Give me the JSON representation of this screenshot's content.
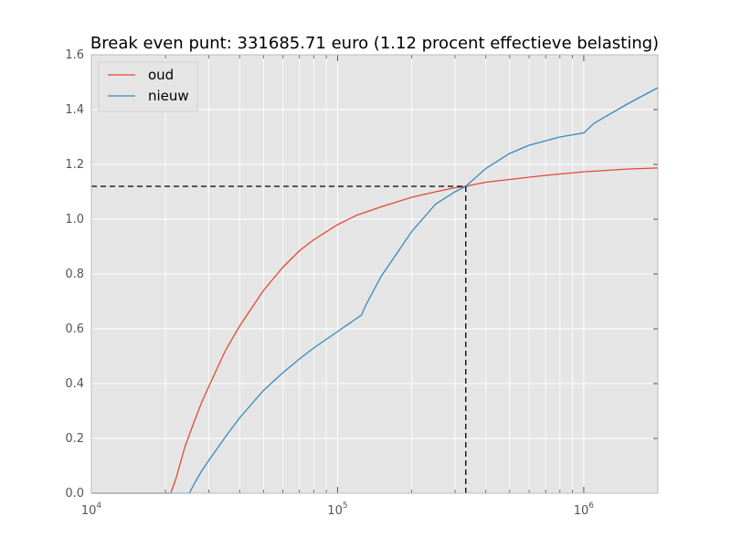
{
  "chart_data": {
    "type": "line",
    "title": "Break even punt: 331685.71 euro (1.12 procent effectieve belasting)",
    "xlabel": "",
    "ylabel": "",
    "xscale": "log",
    "xlim": [
      10000,
      2000000
    ],
    "ylim": [
      0,
      1.6
    ],
    "grid": true,
    "background": "#e5e5e5",
    "legend_position": "top-left",
    "x_ticks": [
      {
        "value": 10000,
        "base": "10",
        "exp": "4"
      },
      {
        "value": 100000,
        "base": "10",
        "exp": "5"
      },
      {
        "value": 1000000,
        "base": "10",
        "exp": "6"
      }
    ],
    "y_ticks": [
      {
        "value": 0.0,
        "label": "0.0"
      },
      {
        "value": 0.2,
        "label": "0.2"
      },
      {
        "value": 0.4,
        "label": "0.4"
      },
      {
        "value": 0.6,
        "label": "0.6"
      },
      {
        "value": 0.8,
        "label": "0.8"
      },
      {
        "value": 1.0,
        "label": "1.0"
      },
      {
        "value": 1.2,
        "label": "1.2"
      },
      {
        "value": 1.4,
        "label": "1.4"
      },
      {
        "value": 1.6,
        "label": "1.6"
      }
    ],
    "series": [
      {
        "name": "oud",
        "color": "#e24a33",
        "x": [
          10000,
          20000,
          21000,
          22000,
          24000,
          26000,
          28000,
          30000,
          35000,
          40000,
          50000,
          60000,
          70000,
          80000,
          100000,
          120000,
          150000,
          200000,
          250000,
          300000,
          331685.71,
          400000,
          500000,
          700000,
          1000000,
          1500000,
          2000000
        ],
        "y": [
          0,
          0,
          0.0,
          0.05,
          0.17,
          0.255,
          0.33,
          0.39,
          0.52,
          0.61,
          0.74,
          0.825,
          0.885,
          0.925,
          0.98,
          1.015,
          1.045,
          1.08,
          1.1,
          1.115,
          1.12,
          1.135,
          1.145,
          1.16,
          1.173,
          1.183,
          1.187
        ]
      },
      {
        "name": "nieuw",
        "color": "#348abd",
        "x": [
          10000,
          24000,
          25000,
          26000,
          28000,
          30000,
          35000,
          40000,
          50000,
          60000,
          70000,
          80000,
          100000,
          125000,
          130000,
          150000,
          200000,
          250000,
          300000,
          331685.71,
          400000,
          500000,
          600000,
          800000,
          1000000,
          1100000,
          1500000,
          2000000
        ],
        "y": [
          0,
          0,
          0.0,
          0.03,
          0.08,
          0.12,
          0.205,
          0.275,
          0.375,
          0.44,
          0.49,
          0.53,
          0.59,
          0.65,
          0.685,
          0.79,
          0.955,
          1.055,
          1.1,
          1.12,
          1.185,
          1.24,
          1.27,
          1.3,
          1.315,
          1.35,
          1.42,
          1.48
        ]
      }
    ],
    "break_even": {
      "x": 331685.71,
      "y": 1.12,
      "line_color": "#000000",
      "line_style": "dashed"
    }
  }
}
